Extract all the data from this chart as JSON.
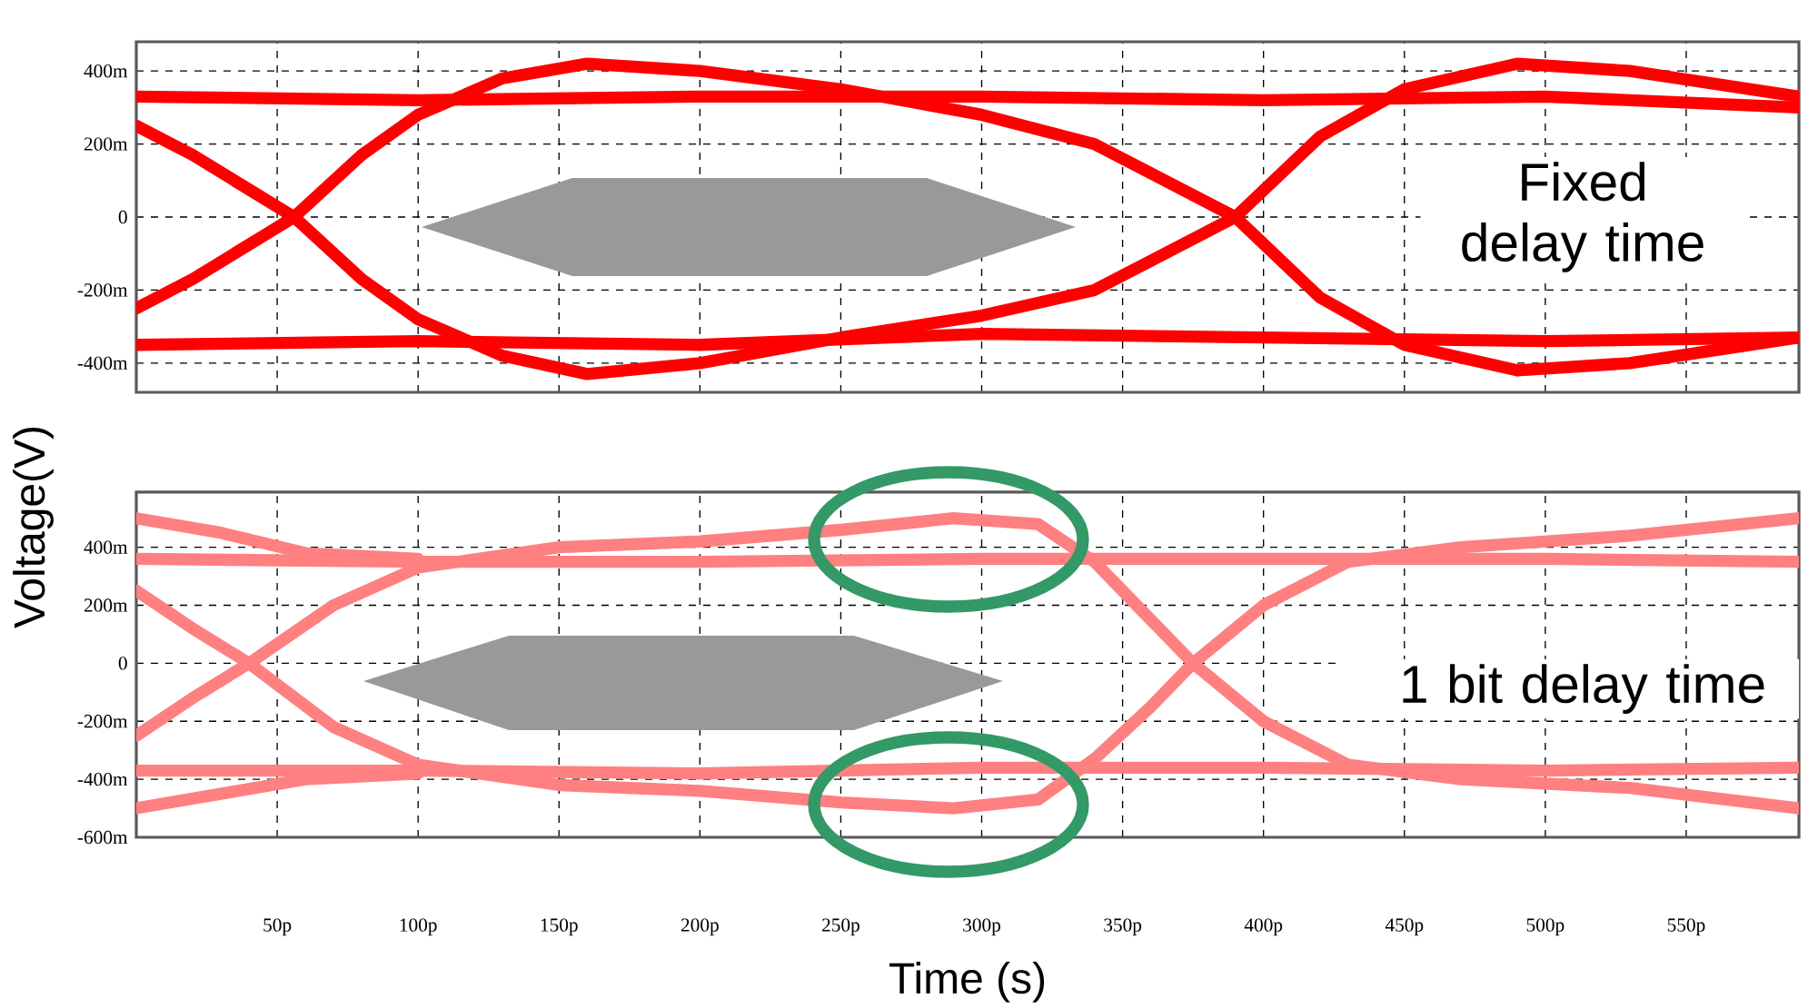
{
  "chart_data": [
    {
      "type": "line",
      "xlim": [
        0,
        590
      ],
      "ylim": [
        -480,
        480
      ],
      "grid": true,
      "tick_labels": "y",
      "line_style": "solid",
      "marker": "none",
      "xticks": [
        {
          "value": 50,
          "label": null
        },
        {
          "value": 100,
          "label": null
        },
        {
          "value": 150,
          "label": null
        },
        {
          "value": 200,
          "label": null
        },
        {
          "value": 250,
          "label": null
        },
        {
          "value": 300,
          "label": null
        },
        {
          "value": 350,
          "label": null
        },
        {
          "value": 400,
          "label": null
        },
        {
          "value": 450,
          "label": null
        },
        {
          "value": 500,
          "label": null
        },
        {
          "value": 550,
          "label": null
        }
      ],
      "yticks": [
        {
          "value": -400,
          "label": "-400m"
        },
        {
          "value": -200,
          "label": "-200m"
        },
        0,
        {
          "value": 200,
          "label": "200m"
        },
        {
          "value": 400,
          "label": "400m"
        }
      ],
      "annotations": [
        "Fixed delay time"
      ],
      "series": [
        {
          "color": "#ff0000",
          "x": [
            0,
            100,
            200,
            300,
            400,
            500,
            590
          ],
          "values": [
            330,
            320,
            330,
            330,
            320,
            330,
            300
          ]
        },
        {
          "color": "#ff0000",
          "x": [
            0,
            100,
            200,
            300,
            400,
            500,
            590
          ],
          "values": [
            -350,
            -340,
            -350,
            -320,
            -330,
            -340,
            -330
          ]
        },
        {
          "color": "#ff0000",
          "x": [
            0,
            20,
            56,
            80,
            100,
            130,
            160,
            200,
            250,
            300,
            340,
            390,
            420,
            450,
            490,
            530,
            590
          ],
          "values": [
            250,
            170,
            0,
            -170,
            -280,
            -380,
            -430,
            -400,
            -330,
            -270,
            -200,
            0,
            220,
            350,
            420,
            400,
            330
          ]
        },
        {
          "color": "#ff0000",
          "x": [
            0,
            20,
            56,
            80,
            100,
            130,
            160,
            200,
            250,
            300,
            340,
            390,
            420,
            450,
            490,
            530,
            590
          ],
          "values": [
            -250,
            -170,
            0,
            170,
            280,
            380,
            420,
            400,
            350,
            280,
            200,
            0,
            -220,
            -350,
            -420,
            -400,
            -330
          ]
        }
      ]
    },
    {
      "type": "line",
      "xlim": [
        0,
        590
      ],
      "ylim": [
        -600,
        590
      ],
      "grid": true,
      "line_style": "solid",
      "marker": "none",
      "xlabel": "Time (s)",
      "ylabel": "Voltage(V)",
      "xticks": [
        {
          "value": 50,
          "label": "50p"
        },
        {
          "value": 100,
          "label": "100p"
        },
        {
          "value": 150,
          "label": "150p"
        },
        {
          "value": 200,
          "label": "200p"
        },
        {
          "value": 250,
          "label": "250p"
        },
        {
          "value": 300,
          "label": "300p"
        },
        {
          "value": 350,
          "label": "350p"
        },
        {
          "value": 400,
          "label": "400p"
        },
        {
          "value": 450,
          "label": "450p"
        },
        {
          "value": 500,
          "label": "500p"
        },
        {
          "value": 550,
          "label": "550p"
        }
      ],
      "yticks": [
        {
          "value": -600,
          "label": "-600m"
        },
        {
          "value": -400,
          "label": "-400m"
        },
        {
          "value": -200,
          "label": "-200m"
        },
        0,
        {
          "value": 200,
          "label": "200m"
        },
        {
          "value": 400,
          "label": "400m"
        }
      ],
      "annotations": [
        "1 bit delay time"
      ],
      "series": [
        {
          "color": "#ff8080",
          "x": [
            0,
            100,
            200,
            300,
            400,
            500,
            590
          ],
          "values": [
            360,
            350,
            350,
            360,
            360,
            360,
            350
          ]
        },
        {
          "color": "#ff8080",
          "x": [
            0,
            100,
            200,
            300,
            400,
            500,
            590
          ],
          "values": [
            -370,
            -370,
            -380,
            -360,
            -360,
            -370,
            -360
          ]
        },
        {
          "color": "#ff8080",
          "x": [
            0,
            30,
            60,
            100
          ],
          "values": [
            500,
            450,
            380,
            360
          ]
        },
        {
          "color": "#ff8080",
          "x": [
            0,
            30,
            60,
            100
          ],
          "values": [
            -500,
            -450,
            -400,
            -380
          ]
        },
        {
          "color": "#ff8080",
          "x": [
            0,
            20,
            40,
            70,
            100,
            150,
            200,
            250,
            290,
            320,
            340,
            360,
            375,
            400,
            430,
            470,
            530,
            590
          ],
          "values": [
            -250,
            -120,
            0,
            200,
            330,
            400,
            420,
            460,
            500,
            480,
            350,
            150,
            0,
            -200,
            -350,
            -400,
            -430,
            -500
          ]
        },
        {
          "color": "#ff8080",
          "x": [
            0,
            20,
            40,
            70,
            100,
            150,
            200,
            250,
            290,
            320,
            340,
            360,
            375,
            400,
            430,
            470,
            530,
            590
          ],
          "values": [
            250,
            120,
            0,
            -220,
            -350,
            -420,
            -440,
            -480,
            -500,
            -470,
            -330,
            -150,
            0,
            200,
            350,
            400,
            440,
            500
          ]
        }
      ]
    }
  ]
}
